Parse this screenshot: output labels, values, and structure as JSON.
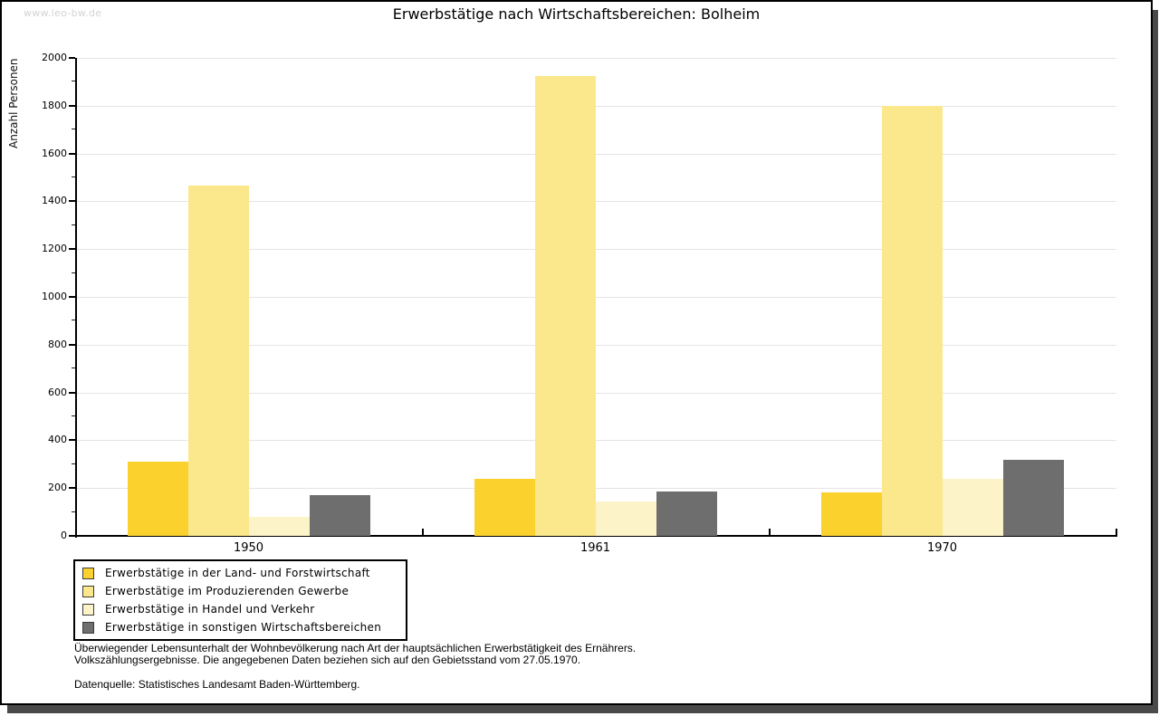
{
  "watermark": "www.leo-bw.de",
  "title": "Erwerbstätige nach Wirtschaftsbereichen: Bolheim",
  "chart_data": {
    "type": "bar",
    "title": "Erwerbstätige nach Wirtschaftsbereichen: Bolheim",
    "categories": [
      "1950",
      "1961",
      "1970"
    ],
    "series": [
      {
        "name": "Erwerbstätige in der Land- und Forstwirtschaft",
        "color": "#FBD12D",
        "values": [
          310,
          240,
          180
        ]
      },
      {
        "name": "Erwerbstätige im Produzierenden Gewerbe",
        "color": "#FBE88C",
        "values": [
          1465,
          1925,
          1800
        ]
      },
      {
        "name": "Erwerbstätige in Handel und Verkehr",
        "color": "#FCF3C8",
        "values": [
          80,
          145,
          240
        ]
      },
      {
        "name": "Erwerbstätige in sonstigen Wirtschaftsbereichen",
        "color": "#6E6E6E",
        "values": [
          170,
          185,
          320
        ]
      }
    ],
    "xlabel": "",
    "ylabel": "Anzahl Personen",
    "ylim": [
      0,
      2000
    ],
    "ytick_step": 200,
    "ytick_labels": [
      "0",
      "200",
      "400",
      "600",
      "800",
      "1000",
      "1200",
      "1400",
      "1600",
      "1800",
      "2000"
    ],
    "grid": true,
    "gridline_color": "#e4e4e4",
    "legend_position": "bottom-left"
  },
  "footnotes": {
    "line1": "Überwiegender Lebensunterhalt der Wohnbevölkerung nach Art der hauptsächlichen Erwerbstätigkeit des Ernährers.",
    "line2": "Volkszählungsergebnisse. Die angegebenen Daten beziehen sich auf den Gebietsstand vom 27.05.1970.",
    "source": "Datenquelle: Statistisches Landesamt Baden-Württemberg."
  }
}
